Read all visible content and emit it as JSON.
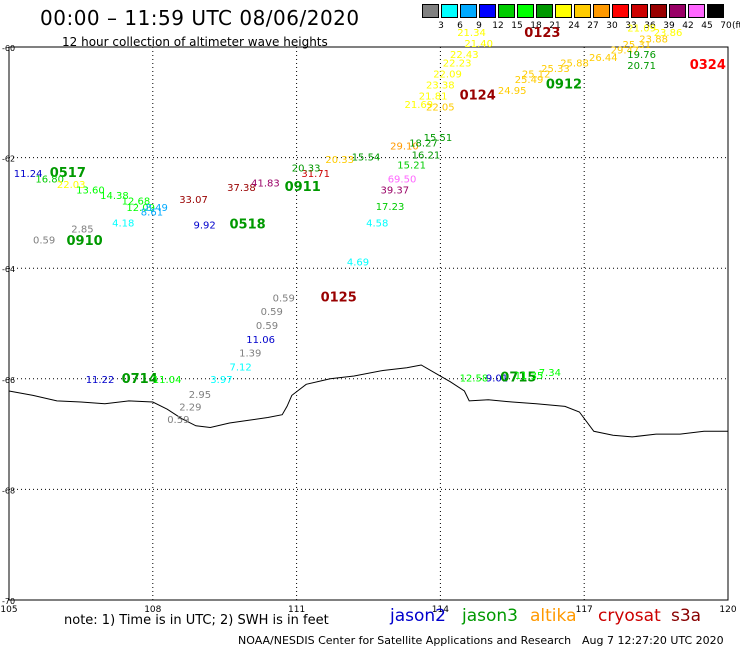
{
  "title": "00:00 – 11:59 UTC 08/06/2020",
  "subtitle": "12 hour collection of altimeter wave heights",
  "note": "note: 1) Time is in UTC; 2) SWH is in feet",
  "credit": "NOAA/NESDIS Center for Satellite Applications and Research",
  "timestamp": "Aug  7 12:27:20 UTC 2020",
  "satellites": [
    {
      "name": "jason2",
      "color": "#0000cc"
    },
    {
      "name": "jason3",
      "color": "#009900"
    },
    {
      "name": "altika",
      "color": "#ff9900"
    },
    {
      "name": "cryosat",
      "color": "#cc0000"
    },
    {
      "name": "s3a",
      "color": "#880000"
    }
  ],
  "legend": {
    "unit": "(ft)",
    "colors": [
      "#808080",
      "#00ffff",
      "#00aaff",
      "#0000ff",
      "#00cc00",
      "#00ff00",
      "#009900",
      "#ffff00",
      "#ffcc00",
      "#ff9900",
      "#ff0000",
      "#cc0000",
      "#990000",
      "#990066",
      "#ff66ff",
      "#000000"
    ],
    "labels": [
      "3",
      "6",
      "9",
      "12",
      "15",
      "18",
      "21",
      "24",
      "27",
      "30",
      "33",
      "36",
      "39",
      "42",
      "45",
      "70"
    ]
  },
  "map": {
    "lon_range": [
      105,
      120
    ],
    "lat_range": [
      -70,
      -60
    ],
    "lon_ticks": [
      105,
      108,
      111,
      114,
      117,
      120
    ],
    "lat_ticks": [
      -60,
      -62,
      -64,
      -66,
      -68,
      -70
    ],
    "coastline": [
      [
        105,
        -66.22
      ],
      [
        105.5,
        -66.3
      ],
      [
        106,
        -66.4
      ],
      [
        106.5,
        -66.42
      ],
      [
        107,
        -66.45
      ],
      [
        107.5,
        -66.4
      ],
      [
        108,
        -66.42
      ],
      [
        108.3,
        -66.55
      ],
      [
        108.6,
        -66.72
      ],
      [
        108.9,
        -66.85
      ],
      [
        109.2,
        -66.88
      ],
      [
        109.6,
        -66.8
      ],
      [
        110,
        -66.75
      ],
      [
        110.4,
        -66.7
      ],
      [
        110.7,
        -66.65
      ],
      [
        110.8,
        -66.5
      ],
      [
        110.9,
        -66.3
      ],
      [
        111.2,
        -66.1
      ],
      [
        111.7,
        -66.0
      ],
      [
        112.2,
        -65.95
      ],
      [
        112.8,
        -65.85
      ],
      [
        113.3,
        -65.8
      ],
      [
        113.6,
        -65.75
      ],
      [
        113.9,
        -65.9
      ],
      [
        114.2,
        -66.05
      ],
      [
        114.5,
        -66.22
      ],
      [
        114.6,
        -66.4
      ],
      [
        115,
        -66.38
      ],
      [
        115.5,
        -66.42
      ],
      [
        116,
        -66.45
      ],
      [
        116.6,
        -66.5
      ],
      [
        116.9,
        -66.6
      ],
      [
        117.2,
        -66.95
      ],
      [
        117.6,
        -67.02
      ],
      [
        118,
        -67.05
      ],
      [
        118.5,
        -67.0
      ],
      [
        119,
        -67.0
      ],
      [
        119.5,
        -66.95
      ],
      [
        120,
        -66.95
      ]
    ]
  },
  "labels": [
    {
      "lon": 105.1,
      "lat": -62.35,
      "t": "11.24",
      "c": "#0000cc"
    },
    {
      "lon": 105.85,
      "lat": -62.35,
      "t": "0517",
      "c": "#009900",
      "b": 1
    },
    {
      "lon": 105.55,
      "lat": -62.45,
      "t": "16.80",
      "c": "#00cc00"
    },
    {
      "lon": 106.0,
      "lat": -62.55,
      "t": "22.03",
      "c": "#ffff00"
    },
    {
      "lon": 106.4,
      "lat": -62.65,
      "t": "13.60",
      "c": "#00ff00"
    },
    {
      "lon": 106.9,
      "lat": -62.75,
      "t": "14.38",
      "c": "#00ff00"
    },
    {
      "lon": 107.35,
      "lat": -62.85,
      "t": "12.68",
      "c": "#00ff00"
    },
    {
      "lon": 107.45,
      "lat": -62.97,
      "t": "12.09",
      "c": "#00ff00"
    },
    {
      "lon": 107.75,
      "lat": -63.05,
      "t": "8.61",
      "c": "#00aaff"
    },
    {
      "lon": 107.85,
      "lat": -62.97,
      "t": "8.49",
      "c": "#00aaff"
    },
    {
      "lon": 107.15,
      "lat": -63.25,
      "t": "4.18",
      "c": "#00ffff"
    },
    {
      "lon": 106.3,
      "lat": -63.35,
      "t": "2.85",
      "c": "#808080"
    },
    {
      "lon": 105.5,
      "lat": -63.55,
      "t": "0.59",
      "c": "#808080"
    },
    {
      "lon": 106.2,
      "lat": -63.58,
      "t": "0910",
      "c": "#009900",
      "b": 1
    },
    {
      "lon": 108.55,
      "lat": -62.82,
      "t": "33.07",
      "c": "#990000"
    },
    {
      "lon": 108.85,
      "lat": -63.28,
      "t": "9.92",
      "c": "#0000cc"
    },
    {
      "lon": 109.6,
      "lat": -63.28,
      "t": "0518",
      "c": "#009900",
      "b": 1
    },
    {
      "lon": 109.55,
      "lat": -62.6,
      "t": "37.38",
      "c": "#990000"
    },
    {
      "lon": 110.05,
      "lat": -62.52,
      "t": "41.83",
      "c": "#990066"
    },
    {
      "lon": 110.75,
      "lat": -62.6,
      "t": "0911",
      "c": "#009900",
      "b": 1
    },
    {
      "lon": 111.1,
      "lat": -62.35,
      "t": "31.71",
      "c": "#cc0000"
    },
    {
      "lon": 110.9,
      "lat": -62.25,
      "t": "20.33",
      "c": "#009900"
    },
    {
      "lon": 111.6,
      "lat": -62.1,
      "t": "20.33",
      "c": "#ffcc00"
    },
    {
      "lon": 112.15,
      "lat": -62.05,
      "t": "15.54",
      "c": "#009900"
    },
    {
      "lon": 112.95,
      "lat": -61.85,
      "t": "29.10",
      "c": "#ff9900"
    },
    {
      "lon": 113.35,
      "lat": -61.8,
      "t": "18.27",
      "c": "#009900"
    },
    {
      "lon": 113.65,
      "lat": -61.7,
      "t": "15.51",
      "c": "#009900"
    },
    {
      "lon": 113.4,
      "lat": -62.02,
      "t": "16.21",
      "c": "#009900"
    },
    {
      "lon": 113.1,
      "lat": -62.2,
      "t": "15.21",
      "c": "#00cc00"
    },
    {
      "lon": 112.9,
      "lat": -62.45,
      "t": "69.50",
      "c": "#ff66ff"
    },
    {
      "lon": 112.75,
      "lat": -62.65,
      "t": "39.37",
      "c": "#990066"
    },
    {
      "lon": 112.65,
      "lat": -62.95,
      "t": "17.23",
      "c": "#00cc00"
    },
    {
      "lon": 112.45,
      "lat": -63.25,
      "t": "4.58",
      "c": "#00ffff"
    },
    {
      "lon": 112.05,
      "lat": -63.95,
      "t": "4.69",
      "c": "#00ffff"
    },
    {
      "lon": 110.5,
      "lat": -64.6,
      "t": "0.59",
      "c": "#808080"
    },
    {
      "lon": 111.5,
      "lat": -64.6,
      "t": "0125",
      "c": "#990000",
      "b": 1
    },
    {
      "lon": 110.25,
      "lat": -64.85,
      "t": "0.59",
      "c": "#808080"
    },
    {
      "lon": 110.15,
      "lat": -65.1,
      "t": "0.59",
      "c": "#808080"
    },
    {
      "lon": 109.95,
      "lat": -65.35,
      "t": "11.06",
      "c": "#0000cc"
    },
    {
      "lon": 109.8,
      "lat": -65.6,
      "t": "1.39",
      "c": "#808080"
    },
    {
      "lon": 109.6,
      "lat": -65.85,
      "t": "7.12",
      "c": "#00ffff"
    },
    {
      "lon": 109.2,
      "lat": -66.08,
      "t": "3.97",
      "c": "#00ffff"
    },
    {
      "lon": 108.75,
      "lat": -66.35,
      "t": "2.95",
      "c": "#808080"
    },
    {
      "lon": 108.55,
      "lat": -66.57,
      "t": "2.29",
      "c": "#808080"
    },
    {
      "lon": 108.3,
      "lat": -66.8,
      "t": "0.59",
      "c": "#808080"
    },
    {
      "lon": 106.6,
      "lat": -66.08,
      "t": "11.22",
      "c": "#0000cc"
    },
    {
      "lon": 107.35,
      "lat": -66.08,
      "t": "0714",
      "c": "#009900",
      "b": 1
    },
    {
      "lon": 108.0,
      "lat": -66.08,
      "t": "11.04",
      "c": "#00ff00"
    },
    {
      "lon": 114.35,
      "lat": -59.8,
      "t": "21.34",
      "c": "#ffff00"
    },
    {
      "lon": 115.75,
      "lat": -59.82,
      "t": "0123",
      "c": "#990000",
      "b": 1
    },
    {
      "lon": 114.5,
      "lat": -60.0,
      "t": "21.40",
      "c": "#ffff00"
    },
    {
      "lon": 114.2,
      "lat": -60.2,
      "t": "22.43",
      "c": "#ffff00"
    },
    {
      "lon": 114.05,
      "lat": -60.35,
      "t": "22.23",
      "c": "#ffff00"
    },
    {
      "lon": 113.85,
      "lat": -60.55,
      "t": "22.09",
      "c": "#ffff00"
    },
    {
      "lon": 113.7,
      "lat": -60.75,
      "t": "23.38",
      "c": "#ffff00"
    },
    {
      "lon": 113.55,
      "lat": -60.95,
      "t": "21.81",
      "c": "#ffff00"
    },
    {
      "lon": 113.25,
      "lat": -61.1,
      "t": "21.69",
      "c": "#ffff00"
    },
    {
      "lon": 113.7,
      "lat": -61.15,
      "t": "22.05",
      "c": "#ffcc00"
    },
    {
      "lon": 114.4,
      "lat": -60.95,
      "t": "0124",
      "c": "#990000",
      "b": 1
    },
    {
      "lon": 115.2,
      "lat": -60.85,
      "t": "24.95",
      "c": "#ffcc00"
    },
    {
      "lon": 115.55,
      "lat": -60.65,
      "t": "25.49",
      "c": "#ffcc00"
    },
    {
      "lon": 115.7,
      "lat": -60.55,
      "t": "25.12",
      "c": "#ffcc00"
    },
    {
      "lon": 116.1,
      "lat": -60.45,
      "t": "25.33",
      "c": "#ffcc00"
    },
    {
      "lon": 116.5,
      "lat": -60.35,
      "t": "25.88",
      "c": "#ffcc00"
    },
    {
      "lon": 117.1,
      "lat": -60.25,
      "t": "26.44",
      "c": "#ffcc00"
    },
    {
      "lon": 116.2,
      "lat": -60.75,
      "t": "0912",
      "c": "#009900",
      "b": 1
    },
    {
      "lon": 117.9,
      "lat": -59.72,
      "t": "21.09",
      "c": "#ffff00"
    },
    {
      "lon": 118.45,
      "lat": -59.8,
      "t": "23.86",
      "c": "#ffff00"
    },
    {
      "lon": 118.15,
      "lat": -59.92,
      "t": "23.88",
      "c": "#ffcc00"
    },
    {
      "lon": 117.8,
      "lat": -60.02,
      "t": "25.31",
      "c": "#ffcc00"
    },
    {
      "lon": 117.55,
      "lat": -60.12,
      "t": "29.47",
      "c": "#ffcc00"
    },
    {
      "lon": 117.9,
      "lat": -60.2,
      "t": "19.76",
      "c": "#009900"
    },
    {
      "lon": 117.9,
      "lat": -60.4,
      "t": "20.71",
      "c": "#009900"
    },
    {
      "lon": 119.2,
      "lat": -60.4,
      "t": "0324",
      "c": "#ff0000",
      "b": 1
    },
    {
      "lon": 114.4,
      "lat": -66.05,
      "t": "12.58",
      "c": "#00ff00"
    },
    {
      "lon": 114.95,
      "lat": -66.05,
      "t": "9.01",
      "c": "#0000cc"
    },
    {
      "lon": 115.25,
      "lat": -66.05,
      "t": "0715",
      "c": "#009900",
      "b": 1
    },
    {
      "lon": 115.55,
      "lat": -66.0,
      "t": "11.35",
      "c": "#00ff00"
    },
    {
      "lon": 116.05,
      "lat": -65.95,
      "t": "7.34",
      "c": "#00ff00"
    }
  ]
}
